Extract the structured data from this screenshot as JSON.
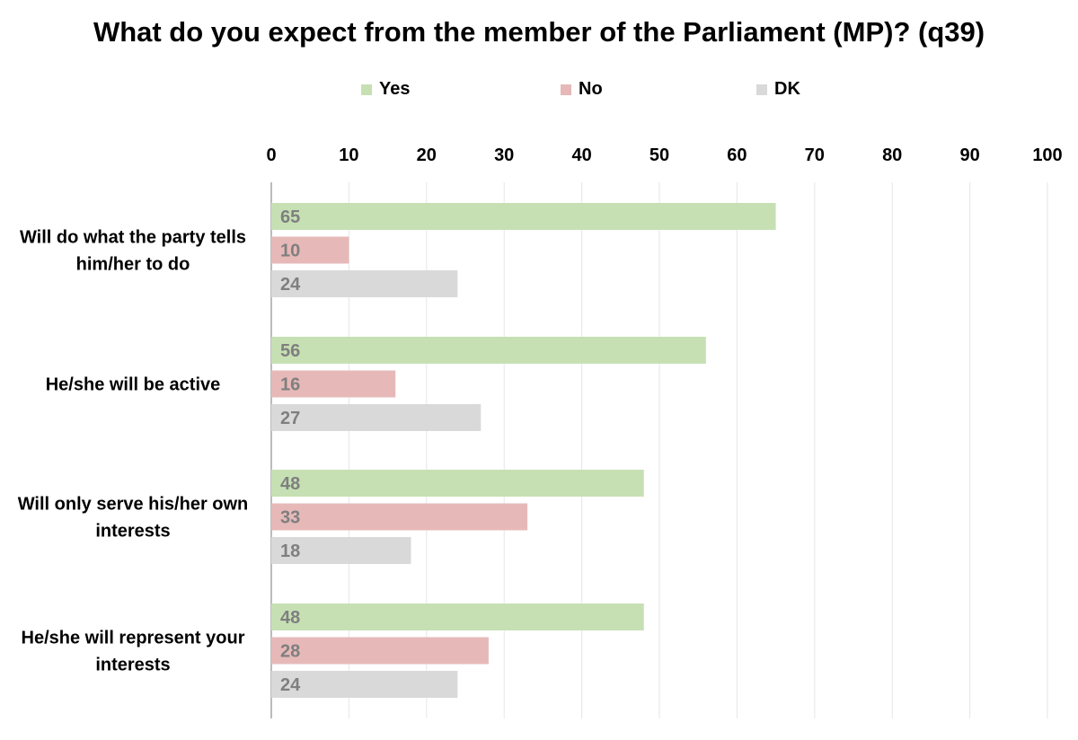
{
  "chart_data": {
    "type": "bar",
    "orientation": "horizontal",
    "title": "What do you expect from the member of the Parliament (MP)? (q39)",
    "categories": [
      [
        "Will do what the party tells",
        "him/her to do"
      ],
      [
        "He/she will be active"
      ],
      [
        "Will only serve his/her own",
        "interests"
      ],
      [
        "He/she will represent your",
        "interests"
      ]
    ],
    "series": [
      {
        "name": "Yes",
        "color": "#c6e0b4",
        "values": [
          65,
          56,
          48,
          48
        ]
      },
      {
        "name": "No",
        "color": "#e6b9b8",
        "values": [
          10,
          16,
          33,
          28
        ]
      },
      {
        "name": "DK",
        "color": "#d9d9d9",
        "values": [
          24,
          27,
          18,
          24
        ]
      }
    ],
    "xlim": [
      0,
      100
    ],
    "xticks": [
      0,
      10,
      20,
      30,
      40,
      50,
      60,
      70,
      80,
      90,
      100
    ],
    "axis_position": "top",
    "grid": true,
    "legend_position": "top",
    "label_color": "#7f7f7f",
    "grid_color": "#e6e6e6",
    "axis_color": "#a6a6a6"
  }
}
